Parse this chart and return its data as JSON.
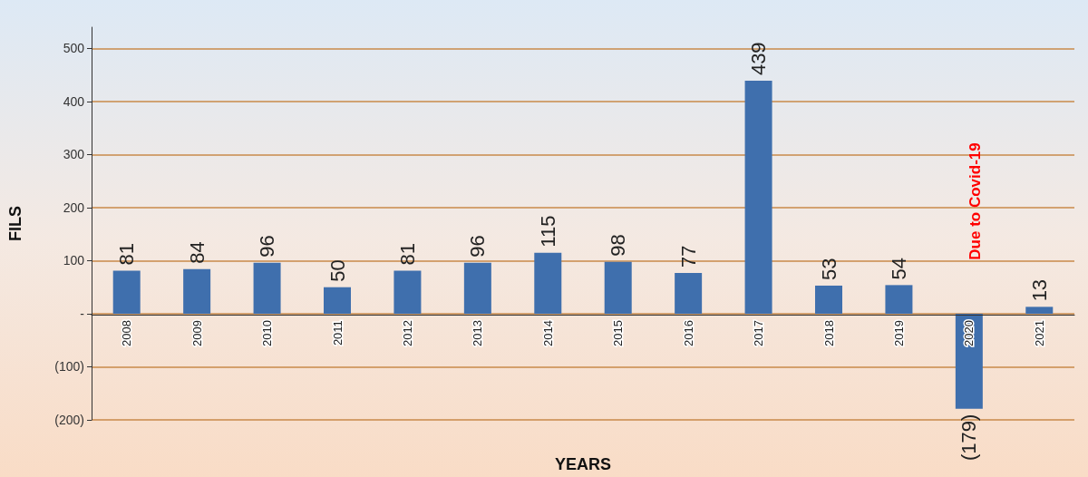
{
  "chart_data": {
    "type": "bar",
    "xlabel": "YEARS",
    "ylabel": "FILS",
    "categories": [
      "2008",
      "2009",
      "2010",
      "2011",
      "2012",
      "2013",
      "2014",
      "2015",
      "2016",
      "2017",
      "2018",
      "2019",
      "2020",
      "2021"
    ],
    "values": [
      81,
      84,
      96,
      50,
      81,
      96,
      115,
      98,
      77,
      439,
      53,
      54,
      -179,
      13
    ],
    "value_labels": [
      "81",
      "84",
      "96",
      "50",
      "81",
      "96",
      "115",
      "98",
      "77",
      "439",
      "53",
      "54",
      "(179)",
      "13"
    ],
    "color": "#3f6fad",
    "ylim": [
      -200,
      540
    ],
    "yticks": [
      {
        "value": -200,
        "label": "(200)"
      },
      {
        "value": -100,
        "label": "(100)"
      },
      {
        "value": 0,
        "label": "-"
      },
      100,
      200,
      300,
      400,
      500
    ],
    "grid": "y",
    "annotations": [
      "Due to Covid-19"
    ]
  }
}
